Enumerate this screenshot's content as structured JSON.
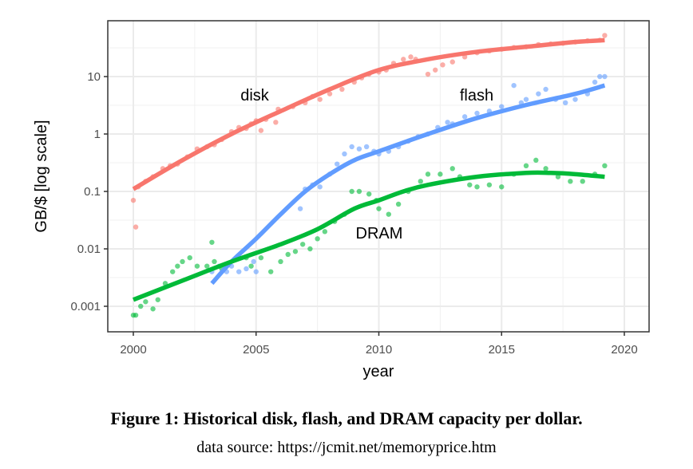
{
  "chart_data": {
    "type": "scatter",
    "xlabel": "year",
    "ylabel": "GB/$ [log scale]",
    "xlim": [
      1999,
      2021
    ],
    "ylim": [
      0.00034,
      114
    ],
    "yscale": "log",
    "grid": true,
    "legend": "none (direct labels)",
    "x_ticks": [
      "2000",
      "2005",
      "2010",
      "2015",
      "2020"
    ],
    "y_ticks": [
      "0.001",
      "0.01",
      "0.1",
      "1",
      "10"
    ],
    "series": [
      {
        "name": "disk",
        "color": "#F8766D",
        "points": [
          [
            2000.0,
            0.07
          ],
          [
            2000.1,
            0.024
          ],
          [
            2000.2,
            0.12
          ],
          [
            2000.5,
            0.15
          ],
          [
            2000.8,
            0.18
          ],
          [
            2001.2,
            0.25
          ],
          [
            2001.5,
            0.28
          ],
          [
            2001.8,
            0.3
          ],
          [
            2002.2,
            0.4
          ],
          [
            2002.6,
            0.55
          ],
          [
            2003.0,
            0.6
          ],
          [
            2003.3,
            0.65
          ],
          [
            2003.6,
            0.8
          ],
          [
            2004.0,
            1.1
          ],
          [
            2004.3,
            1.3
          ],
          [
            2004.6,
            1.25
          ],
          [
            2004.8,
            1.5
          ],
          [
            2005.0,
            1.7
          ],
          [
            2005.2,
            1.15
          ],
          [
            2005.4,
            1.8
          ],
          [
            2005.8,
            1.6
          ],
          [
            2005.9,
            2.7
          ],
          [
            2006.5,
            3
          ],
          [
            2007.0,
            3.5
          ],
          [
            2007.3,
            4.5
          ],
          [
            2007.6,
            4
          ],
          [
            2008.0,
            5
          ],
          [
            2008.5,
            6
          ],
          [
            2009.0,
            8
          ],
          [
            2009.3,
            9.5
          ],
          [
            2009.6,
            11
          ],
          [
            2010.0,
            12
          ],
          [
            2010.3,
            13
          ],
          [
            2010.6,
            17
          ],
          [
            2011.0,
            20
          ],
          [
            2011.3,
            22
          ],
          [
            2011.5,
            20
          ],
          [
            2012.0,
            11
          ],
          [
            2012.3,
            13
          ],
          [
            2012.6,
            16
          ],
          [
            2013.0,
            18
          ],
          [
            2013.5,
            22
          ],
          [
            2014.0,
            26
          ],
          [
            2014.5,
            28
          ],
          [
            2015.0,
            30
          ],
          [
            2015.5,
            32
          ],
          [
            2016.0,
            33
          ],
          [
            2016.5,
            36
          ],
          [
            2017.0,
            37
          ],
          [
            2017.5,
            38
          ],
          [
            2018.0,
            40
          ],
          [
            2018.5,
            42
          ],
          [
            2019.0,
            43
          ],
          [
            2019.2,
            52
          ]
        ],
        "trend": [
          [
            2000,
            0.11
          ],
          [
            2002,
            0.35
          ],
          [
            2004,
            1.0
          ],
          [
            2006,
            2.5
          ],
          [
            2008,
            6
          ],
          [
            2010,
            13
          ],
          [
            2012,
            20
          ],
          [
            2014,
            27
          ],
          [
            2016,
            33
          ],
          [
            2018,
            40
          ],
          [
            2019.2,
            43
          ]
        ]
      },
      {
        "name": "flash",
        "color": "#619CFF",
        "points": [
          [
            2003.2,
            0.004
          ],
          [
            2003.5,
            0.005
          ],
          [
            2003.8,
            0.004
          ],
          [
            2004.0,
            0.005
          ],
          [
            2004.3,
            0.004
          ],
          [
            2004.6,
            0.0045
          ],
          [
            2004.9,
            0.006
          ],
          [
            2005.0,
            0.004
          ],
          [
            2006.8,
            0.05
          ],
          [
            2007.0,
            0.11
          ],
          [
            2007.3,
            0.13
          ],
          [
            2007.6,
            0.12
          ],
          [
            2008.0,
            0.2
          ],
          [
            2008.3,
            0.3
          ],
          [
            2008.6,
            0.45
          ],
          [
            2008.9,
            0.6
          ],
          [
            2009.2,
            0.55
          ],
          [
            2009.5,
            0.6
          ],
          [
            2009.8,
            0.5
          ],
          [
            2010.0,
            0.45
          ],
          [
            2010.4,
            0.5
          ],
          [
            2010.8,
            0.6
          ],
          [
            2011.2,
            0.75
          ],
          [
            2011.6,
            0.9
          ],
          [
            2012.0,
            1.0
          ],
          [
            2012.4,
            1.3
          ],
          [
            2012.8,
            1.6
          ],
          [
            2013.0,
            1.5
          ],
          [
            2013.5,
            2
          ],
          [
            2014.0,
            2.3
          ],
          [
            2014.5,
            2.5
          ],
          [
            2015.0,
            3
          ],
          [
            2015.5,
            7
          ],
          [
            2015.8,
            3.5
          ],
          [
            2016.0,
            4
          ],
          [
            2016.5,
            5
          ],
          [
            2016.8,
            6
          ],
          [
            2017.2,
            4
          ],
          [
            2017.6,
            3.5
          ],
          [
            2018.0,
            4
          ],
          [
            2018.5,
            5
          ],
          [
            2018.8,
            8
          ],
          [
            2019.0,
            10
          ],
          [
            2019.2,
            10
          ]
        ],
        "trend": [
          [
            2003.2,
            0.0025
          ],
          [
            2004,
            0.006
          ],
          [
            2005,
            0.015
          ],
          [
            2006,
            0.04
          ],
          [
            2007,
            0.1
          ],
          [
            2008,
            0.2
          ],
          [
            2009,
            0.35
          ],
          [
            2010,
            0.5
          ],
          [
            2012,
            1.0
          ],
          [
            2014,
            1.9
          ],
          [
            2016,
            3.2
          ],
          [
            2018,
            5
          ],
          [
            2019.2,
            7
          ]
        ]
      },
      {
        "name": "DRAM",
        "color": "#00BA38",
        "points": [
          [
            2000.0,
            0.0007
          ],
          [
            2000.1,
            0.0007
          ],
          [
            2000.3,
            0.001
          ],
          [
            2000.5,
            0.0012
          ],
          [
            2000.8,
            0.0009
          ],
          [
            2001.0,
            0.0013
          ],
          [
            2001.3,
            0.0025
          ],
          [
            2001.6,
            0.004
          ],
          [
            2001.8,
            0.005
          ],
          [
            2002.0,
            0.006
          ],
          [
            2002.3,
            0.007
          ],
          [
            2002.6,
            0.005
          ],
          [
            2003.0,
            0.005
          ],
          [
            2003.2,
            0.013
          ],
          [
            2003.3,
            0.006
          ],
          [
            2003.6,
            0.0045
          ],
          [
            2004.6,
            0.007
          ],
          [
            2004.8,
            0.005
          ],
          [
            2005.2,
            0.007
          ],
          [
            2005.6,
            0.004
          ],
          [
            2006.0,
            0.006
          ],
          [
            2006.3,
            0.008
          ],
          [
            2006.6,
            0.009
          ],
          [
            2006.9,
            0.012
          ],
          [
            2007.2,
            0.01
          ],
          [
            2007.5,
            0.015
          ],
          [
            2007.8,
            0.02
          ],
          [
            2008.2,
            0.03
          ],
          [
            2008.6,
            0.04
          ],
          [
            2008.9,
            0.1
          ],
          [
            2009.2,
            0.1
          ],
          [
            2009.6,
            0.09
          ],
          [
            2009.9,
            0.07
          ],
          [
            2010.0,
            0.05
          ],
          [
            2010.4,
            0.04
          ],
          [
            2010.8,
            0.06
          ],
          [
            2011.2,
            0.1
          ],
          [
            2011.7,
            0.15
          ],
          [
            2012.0,
            0.2
          ],
          [
            2012.5,
            0.2
          ],
          [
            2013.0,
            0.25
          ],
          [
            2013.3,
            0.18
          ],
          [
            2013.7,
            0.13
          ],
          [
            2014.0,
            0.12
          ],
          [
            2014.5,
            0.13
          ],
          [
            2015.0,
            0.12
          ],
          [
            2015.5,
            0.2
          ],
          [
            2016.0,
            0.28
          ],
          [
            2016.4,
            0.35
          ],
          [
            2016.8,
            0.25
          ],
          [
            2017.3,
            0.18
          ],
          [
            2017.8,
            0.15
          ],
          [
            2018.3,
            0.15
          ],
          [
            2018.8,
            0.2
          ],
          [
            2019.2,
            0.28
          ]
        ],
        "trend": [
          [
            2000,
            0.0013
          ],
          [
            2002,
            0.0028
          ],
          [
            2004,
            0.006
          ],
          [
            2006,
            0.012
          ],
          [
            2007.5,
            0.022
          ],
          [
            2009,
            0.05
          ],
          [
            2010,
            0.07
          ],
          [
            2011,
            0.1
          ],
          [
            2012,
            0.13
          ],
          [
            2014,
            0.18
          ],
          [
            2016,
            0.21
          ],
          [
            2017,
            0.21
          ],
          [
            2018,
            0.2
          ],
          [
            2019.2,
            0.18
          ]
        ]
      }
    ]
  },
  "caption": "Figure 1: Historical disk, flash, and DRAM capacity per dollar.",
  "source": "data source: https://jcmit.net/memoryprice.htm"
}
